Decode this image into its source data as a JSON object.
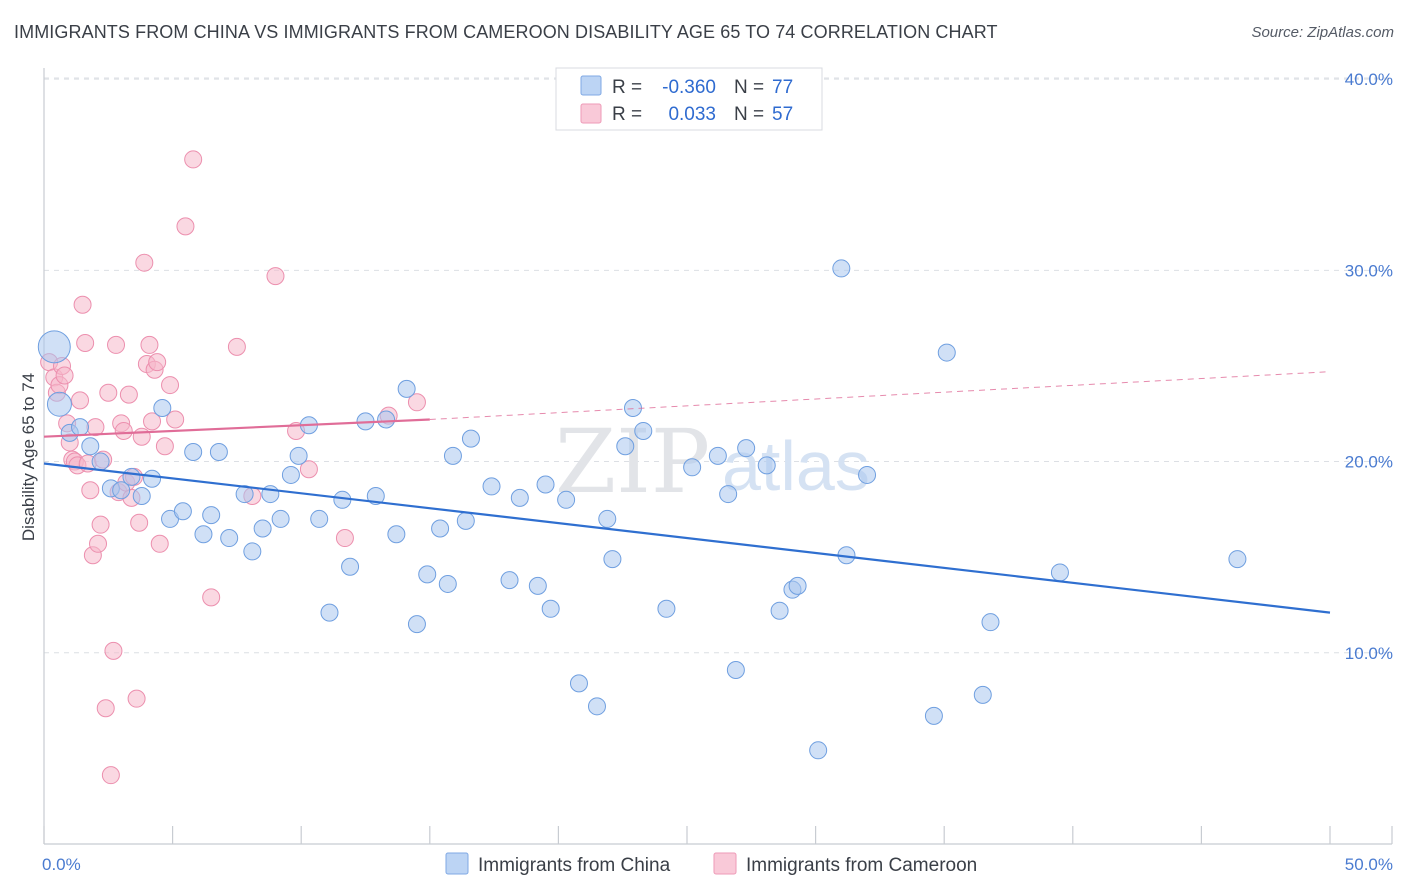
{
  "title": "IMMIGRANTS FROM CHINA VS IMMIGRANTS FROM CAMEROON DISABILITY AGE 65 TO 74 CORRELATION CHART",
  "source": "Source: ZipAtlas.com",
  "watermark": {
    "part1": "ZIP",
    "part2": "atlas"
  },
  "colors": {
    "china_fill": "#a9c7ee",
    "china_stroke": "#6f9fe0",
    "china_line": "#2f6fd0",
    "cameroon_fill": "#f6b8cb",
    "cameroon_stroke": "#ec8fae",
    "cameroon_line": "#e06d98",
    "grid": "#dcdfe4",
    "tick_label": "#4a7bd0"
  },
  "legend": {
    "rows": [
      {
        "r_label": "R =",
        "r_value": "-0.360",
        "n_label": "N =",
        "n_value": "77"
      },
      {
        "r_label": "R =",
        "r_value": "0.033",
        "n_label": "N =",
        "n_value": "57"
      }
    ],
    "bottom": [
      "Immigrants from China",
      "Immigrants from Cameroon"
    ]
  },
  "chart_data": {
    "type": "scatter",
    "title": "IMMIGRANTS FROM CHINA VS IMMIGRANTS FROM CAMEROON DISABILITY AGE 65 TO 74 CORRELATION CHART",
    "xlabel": "",
    "ylabel": "Disability Age 65 to 74",
    "xlim": [
      0,
      50
    ],
    "ylim": [
      0,
      41
    ],
    "x_tick_labels": [
      "0.0%",
      "50.0%"
    ],
    "y_ticks": [
      10,
      20,
      30,
      40
    ],
    "y_tick_labels": [
      "10.0%",
      "20.0%",
      "30.0%",
      "40.0%"
    ],
    "grid": true,
    "legend_position": "top-center",
    "series": [
      {
        "name": "Immigrants from China",
        "r": -0.36,
        "n": 77,
        "trend": {
          "x": [
            0,
            50
          ],
          "y": [
            19.9,
            12.1
          ],
          "style": "solid"
        },
        "points": [
          [
            0.4,
            26.0,
            3
          ],
          [
            0.6,
            23.0,
            2
          ],
          [
            1.0,
            21.5,
            1
          ],
          [
            1.4,
            21.8,
            1
          ],
          [
            1.8,
            20.8,
            1
          ],
          [
            2.2,
            20.0,
            1
          ],
          [
            2.6,
            18.6,
            1
          ],
          [
            3.0,
            18.5,
            1
          ],
          [
            3.4,
            19.2,
            1
          ],
          [
            3.8,
            18.2,
            1
          ],
          [
            4.2,
            19.1,
            1
          ],
          [
            4.6,
            22.8,
            1
          ],
          [
            4.9,
            17.0,
            1
          ],
          [
            5.4,
            17.4,
            1
          ],
          [
            5.8,
            20.5,
            1
          ],
          [
            6.2,
            16.2,
            1
          ],
          [
            6.5,
            17.2,
            1
          ],
          [
            6.8,
            20.5,
            1
          ],
          [
            7.2,
            16.0,
            1
          ],
          [
            7.8,
            18.3,
            1
          ],
          [
            8.1,
            15.3,
            1
          ],
          [
            8.5,
            16.5,
            1
          ],
          [
            8.8,
            18.3,
            1
          ],
          [
            9.2,
            17.0,
            1
          ],
          [
            9.6,
            19.3,
            1
          ],
          [
            9.9,
            20.3,
            1
          ],
          [
            10.3,
            21.9,
            1
          ],
          [
            10.7,
            17.0,
            1
          ],
          [
            11.1,
            12.1,
            1
          ],
          [
            11.6,
            18.0,
            1
          ],
          [
            11.9,
            14.5,
            1
          ],
          [
            12.5,
            22.1,
            1
          ],
          [
            12.9,
            18.2,
            1
          ],
          [
            13.3,
            22.2,
            1
          ],
          [
            13.7,
            16.2,
            1
          ],
          [
            14.1,
            23.8,
            1
          ],
          [
            14.5,
            11.5,
            1
          ],
          [
            14.9,
            14.1,
            1
          ],
          [
            15.4,
            16.5,
            1
          ],
          [
            15.7,
            13.6,
            1
          ],
          [
            15.9,
            20.3,
            1
          ],
          [
            16.4,
            16.9,
            1
          ],
          [
            16.6,
            21.2,
            1
          ],
          [
            17.4,
            18.7,
            1
          ],
          [
            18.1,
            13.8,
            1
          ],
          [
            18.5,
            18.1,
            1
          ],
          [
            19.2,
            13.5,
            1
          ],
          [
            19.5,
            18.8,
            1
          ],
          [
            19.7,
            12.3,
            1
          ],
          [
            20.3,
            18.0,
            1
          ],
          [
            20.8,
            8.4,
            1
          ],
          [
            21.5,
            7.2,
            1
          ],
          [
            21.9,
            17.0,
            1
          ],
          [
            22.1,
            14.9,
            1
          ],
          [
            22.6,
            20.8,
            1
          ],
          [
            22.9,
            22.8,
            1
          ],
          [
            23.3,
            21.6,
            1
          ],
          [
            24.2,
            12.3,
            1
          ],
          [
            25.2,
            19.7,
            1
          ],
          [
            26.2,
            20.3,
            1
          ],
          [
            26.6,
            18.3,
            1
          ],
          [
            26.9,
            9.1,
            1
          ],
          [
            27.3,
            20.7,
            1
          ],
          [
            28.1,
            19.8,
            1
          ],
          [
            28.6,
            12.2,
            1
          ],
          [
            29.1,
            13.3,
            1
          ],
          [
            29.3,
            13.5,
            1
          ],
          [
            30.1,
            4.9,
            1
          ],
          [
            31.0,
            30.1,
            1
          ],
          [
            31.2,
            15.1,
            1
          ],
          [
            32.0,
            19.3,
            1
          ],
          [
            34.6,
            6.7,
            1
          ],
          [
            35.1,
            25.7,
            1
          ],
          [
            36.5,
            7.8,
            1
          ],
          [
            36.8,
            11.6,
            1
          ],
          [
            39.5,
            14.2,
            1
          ],
          [
            46.4,
            14.9,
            1
          ]
        ]
      },
      {
        "name": "Immigrants from Cameroon",
        "r": 0.033,
        "n": 57,
        "trend": {
          "x": [
            0,
            15
          ],
          "y": [
            21.3,
            22.2
          ],
          "style": "solid",
          "dashed_to": [
            50,
            24.7
          ]
        },
        "points": [
          [
            0.2,
            25.2
          ],
          [
            0.4,
            24.4
          ],
          [
            0.5,
            23.6
          ],
          [
            0.6,
            24.0
          ],
          [
            0.7,
            25.0
          ],
          [
            0.8,
            24.5
          ],
          [
            0.9,
            22.0
          ],
          [
            1.0,
            21.0
          ],
          [
            1.1,
            20.1
          ],
          [
            1.2,
            20.0
          ],
          [
            1.3,
            19.8
          ],
          [
            1.4,
            23.2
          ],
          [
            1.5,
            28.2
          ],
          [
            1.6,
            26.2
          ],
          [
            1.7,
            19.9
          ],
          [
            1.8,
            18.5
          ],
          [
            1.9,
            15.1
          ],
          [
            2.0,
            21.8
          ],
          [
            2.1,
            15.7
          ],
          [
            2.2,
            16.7
          ],
          [
            2.3,
            20.1
          ],
          [
            2.4,
            7.1
          ],
          [
            2.5,
            23.6
          ],
          [
            2.6,
            3.6
          ],
          [
            2.7,
            10.1
          ],
          [
            2.8,
            26.1
          ],
          [
            2.9,
            18.4
          ],
          [
            3.0,
            22.0
          ],
          [
            3.1,
            21.6
          ],
          [
            3.2,
            18.9
          ],
          [
            3.3,
            23.5
          ],
          [
            3.4,
            18.1
          ],
          [
            3.5,
            19.2
          ],
          [
            3.6,
            7.6
          ],
          [
            3.7,
            16.8
          ],
          [
            3.8,
            21.3
          ],
          [
            3.9,
            30.4
          ],
          [
            4.0,
            25.1
          ],
          [
            4.1,
            26.1
          ],
          [
            4.2,
            22.1
          ],
          [
            4.3,
            24.8
          ],
          [
            4.4,
            25.2
          ],
          [
            4.5,
            15.7
          ],
          [
            4.7,
            20.8
          ],
          [
            4.9,
            24.0
          ],
          [
            5.1,
            22.2
          ],
          [
            5.5,
            32.3
          ],
          [
            5.8,
            35.8
          ],
          [
            6.5,
            12.9
          ],
          [
            7.5,
            26.0
          ],
          [
            8.1,
            18.2
          ],
          [
            9.0,
            29.7
          ],
          [
            9.8,
            21.6
          ],
          [
            10.3,
            19.6
          ],
          [
            11.7,
            16.0
          ],
          [
            13.4,
            22.4
          ],
          [
            14.5,
            23.1
          ]
        ]
      }
    ]
  }
}
